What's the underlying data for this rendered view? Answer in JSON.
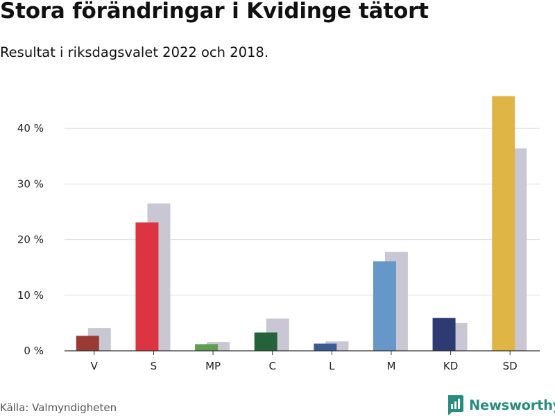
{
  "header": {
    "title": "Stora förändringar i Kvidinge tätort",
    "subtitle": "Resultat i riksdagsvalet 2022 och 2018."
  },
  "footer": {
    "source": "Källa: Valmyndigheten",
    "brand": "Newsworthy",
    "brand_icon": "newsworthy-logo-icon"
  },
  "colors": {
    "brand": "#2a8c7e",
    "previous_election": "#c8c7d3",
    "gridline": "#dddddd",
    "axis": "#333333"
  },
  "chart_data": {
    "type": "bar",
    "categories": [
      "V",
      "S",
      "MP",
      "C",
      "L",
      "M",
      "KD",
      "SD"
    ],
    "series": [
      {
        "values": [
          2.7,
          23.1,
          1.2,
          3.3,
          1.3,
          16.1,
          5.9,
          45.8
        ],
        "colors": [
          "#9b3a35",
          "#dc3440",
          "#5f9e4f",
          "#24633a",
          "#3a5b93",
          "#6598c8",
          "#2e3b73",
          "#dfb546"
        ]
      },
      {
        "values": [
          4.1,
          26.5,
          1.6,
          5.8,
          1.7,
          17.8,
          5.0,
          36.4
        ],
        "color": "#c8c7d3"
      }
    ],
    "y_ticks": [
      0,
      10,
      20,
      30,
      40
    ],
    "y_tick_labels": [
      "0 %",
      "10 %",
      "20 %",
      "30 %",
      "40 %"
    ],
    "ylim": [
      0,
      50
    ],
    "xlabel": "",
    "ylabel": "",
    "grid": true,
    "legend": "none"
  }
}
